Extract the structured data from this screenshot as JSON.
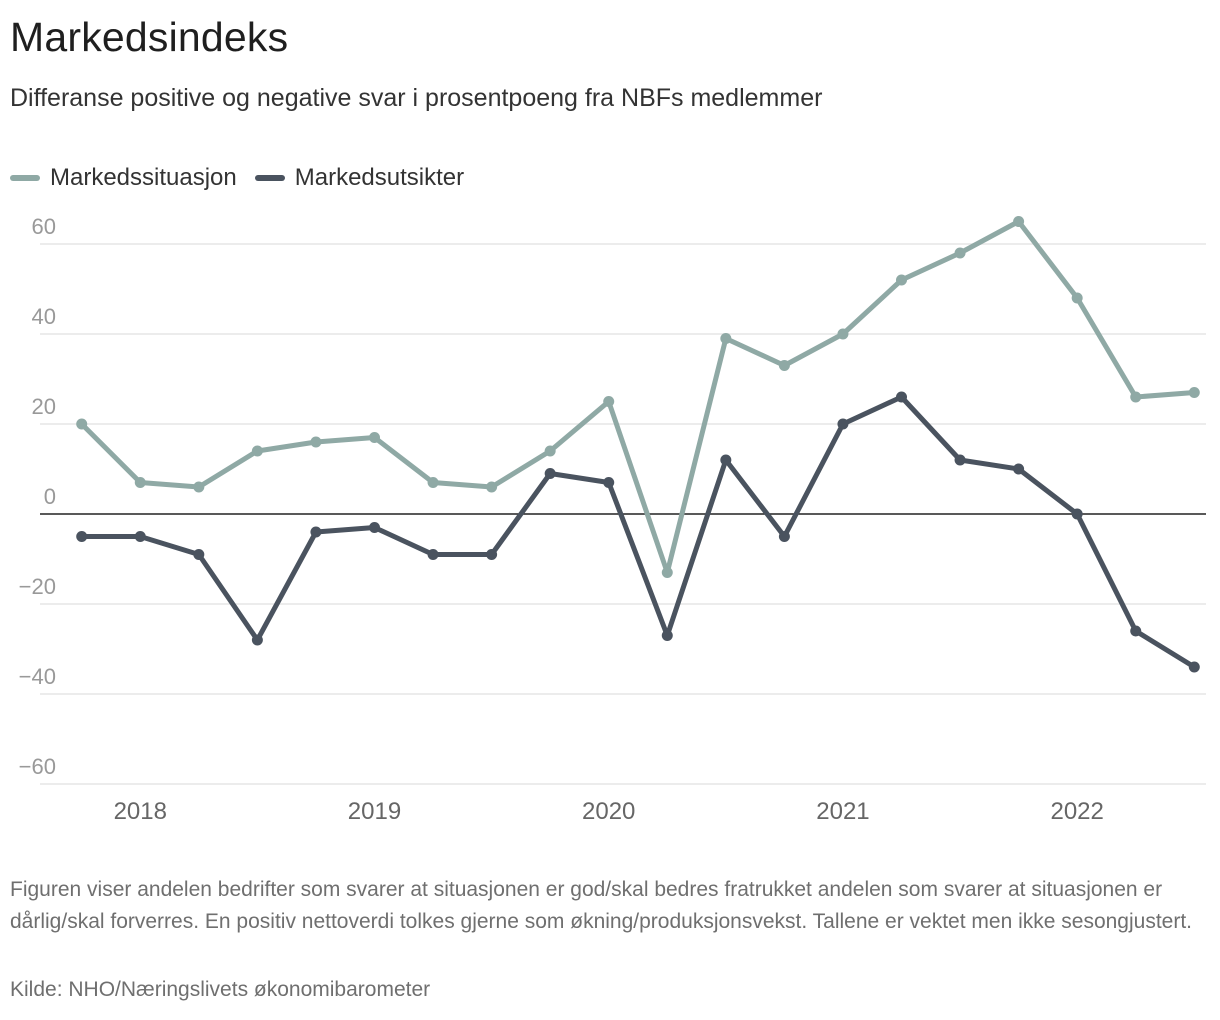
{
  "colors": {
    "series_1": "#8fa9a5",
    "series_2": "#4a535f",
    "grid": "#e6e6e6",
    "zero_line": "#222222"
  },
  "chart_data": {
    "type": "line",
    "title": "Markedsindeks",
    "subtitle": "Differanse positive og negative svar i prosentpoeng fra NBFs medlemmer",
    "xlabel": "",
    "ylabel": "",
    "ylim": [
      -60,
      60
    ],
    "yticks": [
      60,
      40,
      20,
      0,
      -20,
      -40,
      -60
    ],
    "ytick_labels": [
      "60",
      "40",
      "20",
      "0",
      "−20",
      "−40",
      "−60"
    ],
    "xticks": [
      {
        "label": "2018",
        "position": 2018.0
      },
      {
        "label": "2019",
        "position": 2019.0
      },
      {
        "label": "2020",
        "position": 2020.0
      },
      {
        "label": "2021",
        "position": 2021.0
      },
      {
        "label": "2022",
        "position": 2022.0
      }
    ],
    "xlim": [
      2017.7,
      2022.55
    ],
    "x": [
      2017.75,
      2018.0,
      2018.25,
      2018.5,
      2018.75,
      2019.0,
      2019.25,
      2019.5,
      2019.75,
      2020.0,
      2020.25,
      2020.5,
      2020.75,
      2021.0,
      2021.25,
      2021.5,
      2021.75,
      2022.0,
      2022.25,
      2022.5
    ],
    "legend_position": "top-left",
    "series": [
      {
        "name": "Markedssituasjon",
        "color": "#8fa9a5",
        "values": [
          20,
          7,
          6,
          14,
          16,
          17,
          7,
          6,
          14,
          25,
          -13,
          39,
          33,
          40,
          52,
          58,
          65,
          48,
          26,
          27
        ]
      },
      {
        "name": "Markedsutsikter",
        "color": "#4a535f",
        "values": [
          -5,
          -5,
          -9,
          -28,
          -4,
          -3,
          -9,
          -9,
          9,
          7,
          -27,
          12,
          -5,
          20,
          26,
          12,
          10,
          0,
          -26,
          -34
        ]
      }
    ]
  },
  "note": "Figuren viser andelen bedrifter som svarer at situasjonen er god/skal bedres fratrukket andelen som svarer at situasjonen er dårlig/skal forverres. En positiv nettoverdi tolkes gjerne som økning/produksjonsvekst. Tallene er vektet men ikke sesongjustert.",
  "source": "Kilde: NHO/Næringslivets økonomibarometer"
}
